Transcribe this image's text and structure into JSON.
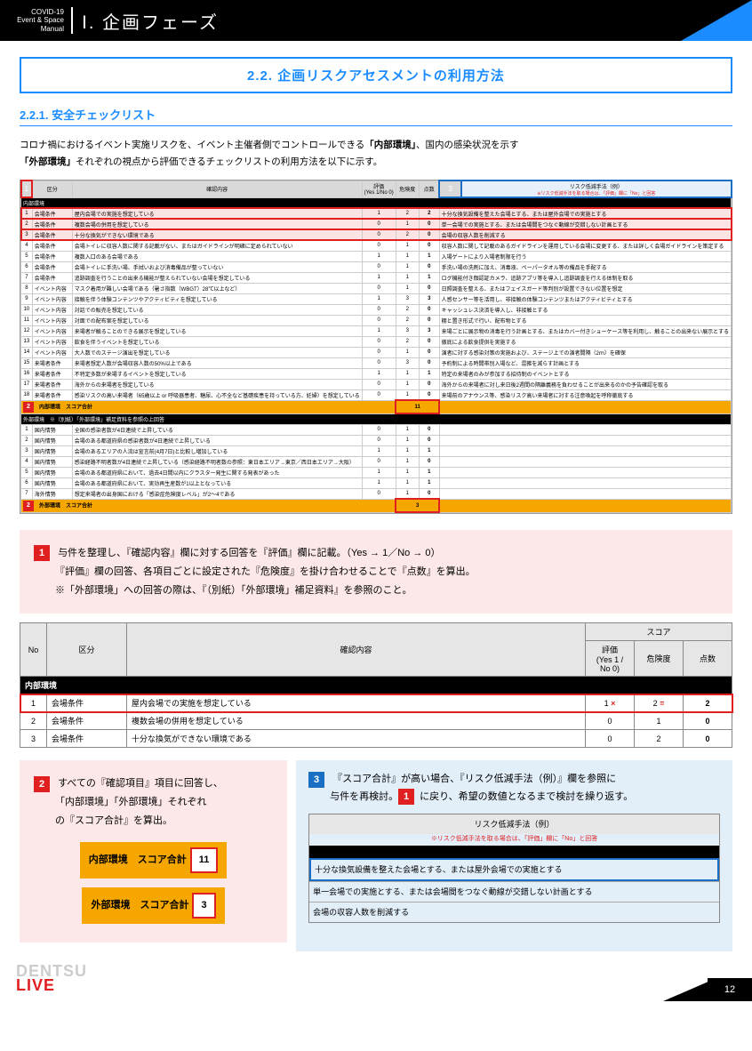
{
  "header": {
    "manual": "COVID-19\nEvent & Space\nManual",
    "phase": "Ⅰ. 企画フェーズ"
  },
  "section": {
    "title": "2.2. 企画リスクアセスメントの利用方法",
    "sub": "2.2.1. 安全チェックリスト"
  },
  "intro": {
    "l1a": "コロナ禍におけるイベント実施リスクを、イベント主催者側でコントロールできる",
    "l1b": "「内部環境」",
    "l1c": "、国内の感染状況を示す",
    "l2a": "「外部環境」",
    "l2b": "それぞれの視点から評価できるチェックリストの利用方法を以下に示す。"
  },
  "tableHeaders": {
    "no": "No",
    "cat": "区分",
    "content": "確認内容",
    "score": "スコア",
    "eval": "評価\n(Yes 1 / No 0)",
    "risk": "危険度",
    "pts": "点数",
    "reduce": "リスク低減手法（例）",
    "reduceNote": "※リスク低減手法を取る場合は、「評価」欄に「No」と回答"
  },
  "section1": "内部環境",
  "section2": "外部環境　※（別紙）「外部環境」補足資料を参照の上回答",
  "pinkRows": [
    {
      "no": "1",
      "cat": "会場条件",
      "txt": "屋内会場での実施を想定している",
      "e": "1",
      "r": "2",
      "p": "2",
      "m": "十分な換気設備を整えた会場とする、または屋外会場での実施とする"
    },
    {
      "no": "2",
      "cat": "会場条件",
      "txt": "複数会場の併用を想定している",
      "e": "0",
      "r": "1",
      "p": "0",
      "m": "単一会場での実施とする、または会場間をつなぐ動線が交錯しない計画とする"
    },
    {
      "no": "3",
      "cat": "会場条件",
      "txt": "十分な換気ができない環境である",
      "e": "0",
      "r": "2",
      "p": "0",
      "m": "会場の収容人数を削減する"
    }
  ],
  "internalRows": [
    {
      "no": "4",
      "cat": "会場条件",
      "txt": "会場トイレに収容人数に関する記載がない、またはガイドラインが明確に定められていない",
      "e": "0",
      "r": "1",
      "p": "0",
      "m": "収容人数に関して記載のあるガイドラインを運用している会場に変更する、または詳しく会場ガイドラインを策定する"
    },
    {
      "no": "5",
      "cat": "会場条件",
      "txt": "複数入口のある会場である",
      "e": "1",
      "r": "1",
      "p": "1",
      "m": "入場ゲートにより入場者制限を行う"
    },
    {
      "no": "6",
      "cat": "会場条件",
      "txt": "会場トイレに手洗い場、手拭いおよび消毒備品が整っていない",
      "e": "0",
      "r": "1",
      "p": "0",
      "m": "手洗い場の洗剤に加え、消毒液、ペーパータオル等の備品を手配する"
    },
    {
      "no": "7",
      "cat": "会場条件",
      "txt": "追跡調査を行うことの出来る機能が整えられていない会場を想定している",
      "e": "1",
      "r": "1",
      "p": "1",
      "m": "ログ機能付き顔認証カメラ、追跡アプリ等を導入し追跡調査を行える体制を取る"
    },
    {
      "no": "8",
      "cat": "イベント内容",
      "txt": "マスク着用が難しい会場である（暑さ指数（WBGT）28℃以上など）",
      "e": "0",
      "r": "1",
      "p": "0",
      "m": "日照調査を整える、またはフェイスガード等判別が設置できない位置を想定"
    },
    {
      "no": "9",
      "cat": "イベント内容",
      "txt": "接触を伴う体験コンテンツやアクティビティを想定している",
      "e": "1",
      "r": "3",
      "p": "3",
      "m": "人感センサー等を活用し、非接触の体験コンテンツまたはアクティビティとする"
    },
    {
      "no": "10",
      "cat": "イベント内容",
      "txt": "対話での販売を想定している",
      "e": "0",
      "r": "2",
      "p": "0",
      "m": "キャッシュレス決済を導入し、非接触とする"
    },
    {
      "no": "11",
      "cat": "イベント内容",
      "txt": "対面での配布案を想定している",
      "e": "0",
      "r": "2",
      "p": "0",
      "m": "棚と置き形式で行い、配布物とする"
    },
    {
      "no": "12",
      "cat": "イベント内容",
      "txt": "来場者が触ることのできる展示を想定している",
      "e": "1",
      "r": "3",
      "p": "3",
      "m": "来場ごとに展示物の消毒を行う計画とする、またはカバー付きショーケース等を利用し、触ることの出来ない展示とする"
    },
    {
      "no": "13",
      "cat": "イベント内容",
      "txt": "飲食を伴うイベントを想定している",
      "e": "0",
      "r": "2",
      "p": "0",
      "m": "徹底による飲食提供を実施する"
    },
    {
      "no": "14",
      "cat": "イベント内容",
      "txt": "大人数でのステージ演出を想定している",
      "e": "0",
      "r": "1",
      "p": "0",
      "m": "演者に対する感染対策の実施および、ステージ上での演者間隔（2ｍ）を確保"
    },
    {
      "no": "15",
      "cat": "来場者条件",
      "txt": "来場者想定人数が会場収容人数の50%以上である",
      "e": "0",
      "r": "3",
      "p": "0",
      "m": "予約制による時間帯別入場など、混雑を減らす計画とする"
    },
    {
      "no": "16",
      "cat": "来場者条件",
      "txt": "不特定多数が来場するイベントを想定している",
      "e": "1",
      "r": "1",
      "p": "1",
      "m": "特定の来場者のみが参加する招待制のイベントとする"
    },
    {
      "no": "17",
      "cat": "来場者条件",
      "txt": "海外からの来場者を想定している",
      "e": "0",
      "r": "1",
      "p": "0",
      "m": "海外からの来場者に対し来日後2週間の隔離義務を負わせることが出来るのかの予告確認を取る"
    },
    {
      "no": "18",
      "cat": "来場者条件",
      "txt": "感染リスクの高い来場者（65歳以上 or 呼吸器患者、糖尿、心不全など基礎疾患を持っている方、妊婦）を想定している",
      "e": "0",
      "r": "1",
      "p": "0",
      "m": "来場前のアナウンス等、感染リスク高い来場者に対する注意喚起を呼称徹底する"
    }
  ],
  "internalTotal": {
    "label": "内部環境　スコア合計",
    "val": "11"
  },
  "externalRows": [
    {
      "no": "1",
      "cat": "国内情勢",
      "txt": "全国の感染者数が4日連続で上昇している",
      "e": "0",
      "r": "1",
      "p": "0"
    },
    {
      "no": "2",
      "cat": "国内情勢",
      "txt": "会場のある都道府県の感染者数が4日連続で上昇している",
      "e": "0",
      "r": "1",
      "p": "0"
    },
    {
      "no": "3",
      "cat": "国内情勢",
      "txt": "会場のあるエリアの人流は宣言前(4月7日)と比較し増加している",
      "e": "1",
      "r": "1",
      "p": "1"
    },
    {
      "no": "4",
      "cat": "国内情勢",
      "txt": "感染経路不明者数が4日連続で上昇している（感染経路不明者数の参照：東日本エリア→東京／西日本エリア→大阪）",
      "e": "0",
      "r": "1",
      "p": "0"
    },
    {
      "no": "5",
      "cat": "国内情勢",
      "txt": "会場のある都道府県において、過去4日間以内にクラスター発生に関する発表があった",
      "e": "1",
      "r": "1",
      "p": "1"
    },
    {
      "no": "6",
      "cat": "国内情勢",
      "txt": "会場のある都道府県において、実効再生産数が1以上となっている",
      "e": "1",
      "r": "1",
      "p": "1"
    },
    {
      "no": "7",
      "cat": "海外情勢",
      "txt": "想定来場者の出身国における「感染症危険度レベル」が2～4である",
      "e": "0",
      "r": "1",
      "p": "0"
    }
  ],
  "externalTotal": {
    "label": "外部環境　スコア合計",
    "val": "3"
  },
  "box1": {
    "l1": "与件を整理し、『確認内容』欄に対する回答を『評価』欄に記載。（Yes → 1／No → 0）",
    "l2": "『評価』欄の回答、各項目ごとに設定された『危険度』を掛け合わせることで『点数』を算出。",
    "l3": "※「外部環境」への回答の際は、『（別紙）「外部環境」補足資料』を参照のこと。"
  },
  "sample": {
    "hdr": "内部環境",
    "rows": [
      {
        "no": "1",
        "cat": "会場条件",
        "txt": "屋内会場での実施を想定している",
        "e": "1",
        "x": "×",
        "r": "2",
        "eq": "=",
        "p": "2"
      },
      {
        "no": "2",
        "cat": "会場条件",
        "txt": "複数会場の併用を想定している",
        "e": "0",
        "r": "1",
        "p": "0"
      },
      {
        "no": "3",
        "cat": "会場条件",
        "txt": "十分な換気ができない環境である",
        "e": "0",
        "r": "2",
        "p": "0"
      }
    ]
  },
  "box2": {
    "l1": "すべての『確認項目』項目に回答し、",
    "l2": "「内部環境」「外部環境」それぞれ",
    "l3": "の『スコア合計』を算出。",
    "btn1": "内部環境　スコア合計",
    "v1": "11",
    "btn2": "外部環境　スコア合計",
    "v2": "3"
  },
  "box3": {
    "l1a": "『スコア合計』が高い場合、『リスク低減手法（例）』欄を参照に",
    "l2a": "与件を再検討。",
    "l2b": "に戻り、希望の数値となるまで検討を繰り返す。",
    "reduce": {
      "title": "リスク低減手法（例）",
      "note": "※リスク低減手法を取る場合は、「評価」欄に「No」と回答",
      "r1": "十分な換気設備を整えた会場とする、または屋外会場での実施とする",
      "r2": "単一会場での実施とする、または会場間をつなぐ動線が交錯しない計画とする",
      "r3": "会場の収容人数を削減する"
    }
  },
  "footer": {
    "logo1": "DENTSU",
    "logo2": "LIVE",
    "page": "12"
  }
}
